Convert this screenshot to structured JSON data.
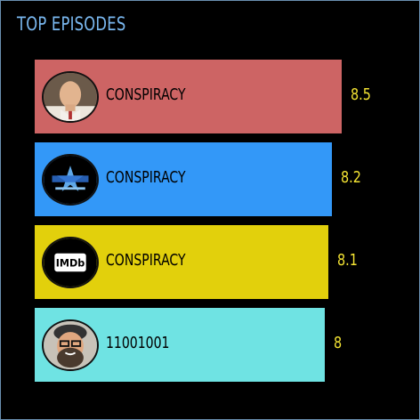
{
  "title": "TOP EPISODES",
  "colors": {
    "title": "#7ab8f0",
    "value": "#f4e433",
    "frame": "#6a8fb0"
  },
  "chart_data": {
    "type": "bar",
    "orientation": "horizontal",
    "categories": [
      "CONSPIRACY",
      "CONSPIRACY",
      "CONSPIRACY",
      "11001001"
    ],
    "values": [
      8.5,
      8.2,
      8.1,
      8
    ],
    "value_labels": [
      "8.5",
      "8.2",
      "8.1",
      "8"
    ],
    "bar_colors": [
      "#cd6464",
      "#3398f8",
      "#e2d00c",
      "#6fe3e3"
    ],
    "icons": [
      "person-photo-icon",
      "startrek-logo-icon",
      "imdb-logo-icon",
      "bearded-person-photo-icon"
    ]
  }
}
